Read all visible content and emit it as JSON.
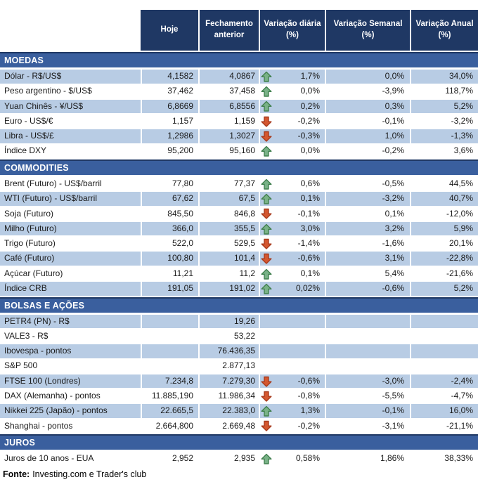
{
  "chart_data": {
    "type": "table",
    "columns": [
      "Hoje",
      "Fechamento anterior",
      "Variação diária (%)",
      "Variação Semanal (%)",
      "Variação Anual (%)"
    ],
    "sections": [
      {
        "title": "MOEDAS",
        "rows": [
          {
            "label": "Dólar - R$/US$",
            "hoje": "4,1582",
            "fechamento": "4,0867",
            "trend": "up",
            "diaria": "1,7%",
            "semanal": "0,0%",
            "anual": "34,0%"
          },
          {
            "label": "Peso argentino - $/US$",
            "hoje": "37,462",
            "fechamento": "37,458",
            "trend": "up",
            "diaria": "0,0%",
            "semanal": "-3,9%",
            "anual": "118,7%"
          },
          {
            "label": "Yuan Chinês - ¥/US$",
            "hoje": "6,8669",
            "fechamento": "6,8556",
            "trend": "up",
            "diaria": "0,2%",
            "semanal": "0,3%",
            "anual": "5,2%"
          },
          {
            "label": "Euro - US$/€",
            "hoje": "1,157",
            "fechamento": "1,159",
            "trend": "down",
            "diaria": "-0,2%",
            "semanal": "-0,1%",
            "anual": "-3,2%"
          },
          {
            "label": "Libra - US$/£",
            "hoje": "1,2986",
            "fechamento": "1,3027",
            "trend": "down",
            "diaria": "-0,3%",
            "semanal": "1,0%",
            "anual": "-1,3%"
          },
          {
            "label": "Índice DXY",
            "hoje": "95,200",
            "fechamento": "95,160",
            "trend": "up",
            "diaria": "0,0%",
            "semanal": "-0,2%",
            "anual": "3,6%"
          }
        ]
      },
      {
        "title": "COMMODITIES",
        "rows": [
          {
            "label": "Brent (Futuro) - US$/barril",
            "hoje": "77,80",
            "fechamento": "77,37",
            "trend": "up",
            "diaria": "0,6%",
            "semanal": "-0,5%",
            "anual": "44,5%"
          },
          {
            "label": "WTI (Futuro) - US$/barril",
            "hoje": "67,62",
            "fechamento": "67,5",
            "trend": "up",
            "diaria": "0,1%",
            "semanal": "-3,2%",
            "anual": "40,7%"
          },
          {
            "label": "Soja (Futuro)",
            "hoje": "845,50",
            "fechamento": "846,8",
            "trend": "down",
            "diaria": "-0,1%",
            "semanal": "0,1%",
            "anual": "-12,0%"
          },
          {
            "label": "Milho (Futuro)",
            "hoje": "366,0",
            "fechamento": "355,5",
            "trend": "up",
            "diaria": "3,0%",
            "semanal": "3,2%",
            "anual": "5,9%"
          },
          {
            "label": "Trigo (Futuro)",
            "hoje": "522,0",
            "fechamento": "529,5",
            "trend": "down",
            "diaria": "-1,4%",
            "semanal": "-1,6%",
            "anual": "20,1%"
          },
          {
            "label": "Café (Futuro)",
            "hoje": "100,80",
            "fechamento": "101,4",
            "trend": "down",
            "diaria": "-0,6%",
            "semanal": "3,1%",
            "anual": "-22,8%"
          },
          {
            "label": "Açúcar (Futuro)",
            "hoje": "11,21",
            "fechamento": "11,2",
            "trend": "up",
            "diaria": "0,1%",
            "semanal": "5,4%",
            "anual": "-21,6%"
          },
          {
            "label": "Índice CRB",
            "hoje": "191,05",
            "fechamento": "191,02",
            "trend": "up",
            "diaria": "0,02%",
            "semanal": "-0,6%",
            "anual": "5,2%"
          }
        ]
      },
      {
        "title": "BOLSAS E AÇÕES",
        "rows": [
          {
            "label": "PETR4 (PN) - R$",
            "hoje": "",
            "fechamento": "19,26",
            "trend": null,
            "diaria": "",
            "semanal": "",
            "anual": ""
          },
          {
            "label": "VALE3 - R$",
            "hoje": "",
            "fechamento": "53,22",
            "trend": null,
            "diaria": "",
            "semanal": "",
            "anual": ""
          },
          {
            "label": "Ibovespa - pontos",
            "hoje": "",
            "fechamento": "76.436,35",
            "trend": null,
            "diaria": "",
            "semanal": "",
            "anual": ""
          },
          {
            "label": "S&P 500",
            "hoje": "",
            "fechamento": "2.877,13",
            "trend": null,
            "diaria": "",
            "semanal": "",
            "anual": ""
          },
          {
            "label": "FTSE 100 (Londres)",
            "hoje": "7.234,8",
            "fechamento": "7.279,30",
            "trend": "down",
            "diaria": "-0,6%",
            "semanal": "-3,0%",
            "anual": "-2,4%"
          },
          {
            "label": "DAX (Alemanha) - pontos",
            "hoje": "11.885,190",
            "fechamento": "11.986,34",
            "trend": "down",
            "diaria": "-0,8%",
            "semanal": "-5,5%",
            "anual": "-4,7%"
          },
          {
            "label": "Nikkei 225 (Japão) - pontos",
            "hoje": "22.665,5",
            "fechamento": "22.383,0",
            "trend": "up",
            "diaria": "1,3%",
            "semanal": "-0,1%",
            "anual": "16,0%"
          },
          {
            "label": "Shanghai - pontos",
            "hoje": "2.664,800",
            "fechamento": "2.669,48",
            "trend": "down",
            "diaria": "-0,2%",
            "semanal": "-3,1%",
            "anual": "-21,1%"
          }
        ]
      },
      {
        "title": "JUROS",
        "rows": [
          {
            "label": "Juros de 10 anos - EUA",
            "hoje": "2,952",
            "fechamento": "2,935",
            "trend": "up",
            "diaria": "0,58%",
            "semanal": "1,86%",
            "anual": "38,33%"
          }
        ]
      }
    ],
    "footer": {
      "source_label": "Fonte:",
      "source_text": "Investing.com e Trader's club"
    }
  },
  "icons": {
    "up": "up-arrow-icon",
    "down": "down-arrow-icon"
  },
  "colors": {
    "header_bg": "#1F3864",
    "section_bg": "#3A5F9E",
    "row_alt_bg": "#B8CCE4",
    "arrow_up_fill": "#79B287",
    "arrow_up_stroke": "#41804F",
    "arrow_down_fill": "#D4572F",
    "arrow_down_stroke": "#A83A1C"
  }
}
